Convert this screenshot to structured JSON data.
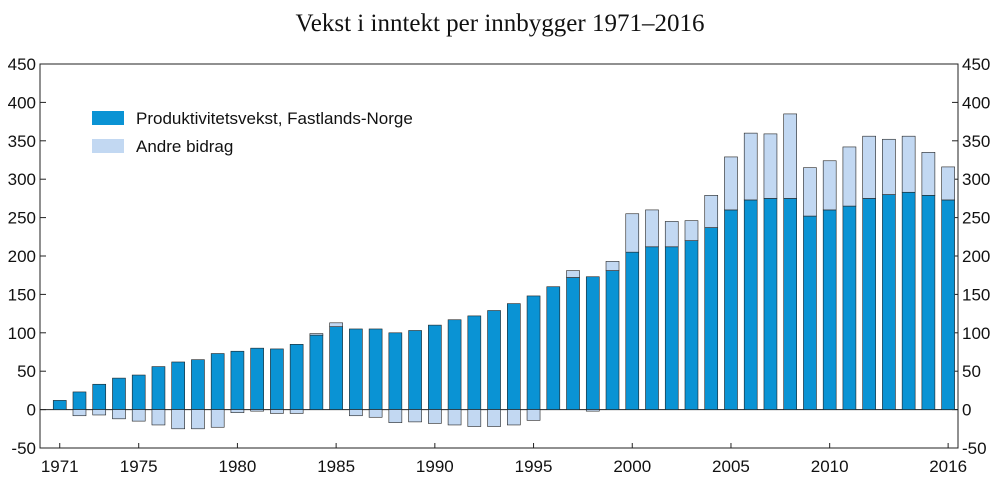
{
  "chart_data": {
    "type": "bar",
    "stacked": true,
    "title": "Vekst i inntekt per innbygger 1971–2016",
    "xlabel": "",
    "ylabel": "",
    "ylim": [
      -50,
      450
    ],
    "yticks": [
      -50,
      0,
      50,
      100,
      150,
      200,
      250,
      300,
      350,
      400,
      450
    ],
    "xtick_labels": [
      "1971",
      "1975",
      "1980",
      "1985",
      "1990",
      "1995",
      "2000",
      "2005",
      "2010",
      "2016"
    ],
    "secondary_y_axis": true,
    "grid": false,
    "legend_position": "top-left",
    "x": [
      1971,
      1972,
      1973,
      1974,
      1975,
      1976,
      1977,
      1978,
      1979,
      1980,
      1981,
      1982,
      1983,
      1984,
      1985,
      1986,
      1987,
      1988,
      1989,
      1990,
      1991,
      1992,
      1993,
      1994,
      1995,
      1996,
      1997,
      1998,
      1999,
      2000,
      2001,
      2002,
      2003,
      2004,
      2005,
      2006,
      2007,
      2008,
      2009,
      2010,
      2011,
      2012,
      2013,
      2014,
      2015,
      2016
    ],
    "series": [
      {
        "name": "Produktivitetsvekst, Fastlands-Norge",
        "color": "#0a93d4",
        "values": [
          12,
          23,
          33,
          41,
          45,
          56,
          62,
          65,
          73,
          76,
          80,
          79,
          85,
          97,
          108,
          105,
          105,
          100,
          103,
          110,
          117,
          122,
          129,
          138,
          148,
          160,
          172,
          173,
          181,
          205,
          212,
          212,
          220,
          237,
          260,
          273,
          275,
          275,
          252,
          260,
          265,
          275,
          280,
          283,
          279,
          273
        ]
      },
      {
        "name": "Andre bidrag",
        "color": "#c2d8f2",
        "values": [
          0,
          -8,
          -7,
          -12,
          -15,
          -20,
          -25,
          -25,
          -23,
          -4,
          -2,
          -5,
          -5,
          2,
          5,
          -8,
          -10,
          -17,
          -16,
          -18,
          -20,
          -22,
          -22,
          -20,
          -14,
          0,
          9,
          -2,
          12,
          50,
          48,
          33,
          26,
          42,
          69,
          87,
          84,
          110,
          63,
          64,
          77,
          81,
          72,
          73,
          56,
          43
        ]
      }
    ]
  }
}
